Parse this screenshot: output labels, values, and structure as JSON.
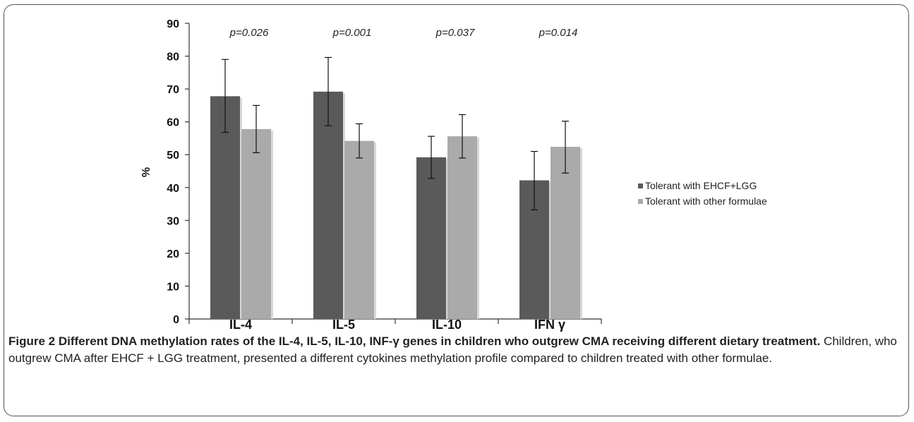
{
  "figure": {
    "title": "Figure 2 Different DNA methylation rates of the IL-4, IL-5, IL-10, INF-γ genes in children who outgrew CMA receiving different dietary treatment.",
    "text": "Children, who outgrew CMA after EHCF + LGG treatment, presented a different cytokines methylation profile compared to children treated with other formulae."
  },
  "chart_data": {
    "type": "bar",
    "ylabel": "%",
    "xlabel": "",
    "ylim": [
      0,
      90
    ],
    "yticks": [
      "0",
      "10",
      "20",
      "30",
      "40",
      "50",
      "60",
      "70",
      "80",
      "90"
    ],
    "categories": [
      "IL-4",
      "IL-5",
      "IL-10",
      "IFN γ"
    ],
    "p_values": [
      "p=0.026",
      "p=0.001",
      "p=0.037",
      "p=0.014"
    ],
    "series": [
      {
        "name": "Tolerant with EHCF+LGG",
        "color": "#5a5a5a",
        "values": [
          67.8,
          69.2,
          49.2,
          42.2
        ],
        "err_low": [
          56.8,
          58.8,
          42.8,
          33.2
        ],
        "err_high": [
          79.0,
          79.6,
          55.6,
          51.0
        ]
      },
      {
        "name": "Tolerant with other formulae",
        "color": "#aaaaaa",
        "values": [
          57.8,
          54.2,
          55.6,
          52.4
        ],
        "err_low": [
          50.6,
          49.0,
          49.0,
          44.4
        ],
        "err_high": [
          65.0,
          59.4,
          62.2,
          60.2
        ]
      }
    ],
    "grid": false,
    "legend_position": "right"
  }
}
